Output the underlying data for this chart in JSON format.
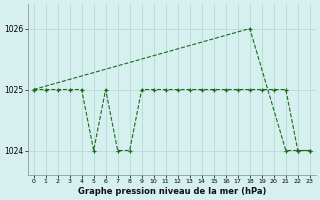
{
  "title": "Graphe pression niveau de la mer (hPa)",
  "bg_color": "#d6f0f0",
  "grid_color": "#b8d8d8",
  "line_color": "#1a6b1a",
  "marker_color": "#1a6b1a",
  "xlim": [
    -0.5,
    23.5
  ],
  "ylim": [
    1023.6,
    1026.4
  ],
  "yticks": [
    1024,
    1025,
    1026
  ],
  "xticks": [
    0,
    1,
    2,
    3,
    4,
    5,
    6,
    7,
    8,
    9,
    10,
    11,
    12,
    13,
    14,
    15,
    16,
    17,
    18,
    19,
    20,
    21,
    22,
    23
  ],
  "line1_x": [
    0,
    1,
    2,
    3,
    4,
    5,
    6,
    7,
    8,
    9,
    10,
    11,
    12,
    13,
    14,
    15,
    16,
    17,
    18,
    19,
    20,
    21,
    22,
    23
  ],
  "line1_y": [
    1025.0,
    1025.0,
    1025.0,
    1025.0,
    1025.0,
    1024.0,
    1025.0,
    1024.0,
    1024.0,
    1025.0,
    1025.0,
    1025.0,
    1025.0,
    1025.0,
    1025.0,
    1025.0,
    1025.0,
    1025.0,
    1025.0,
    1025.0,
    1025.0,
    1025.0,
    1024.0,
    1024.0
  ],
  "line2_x": [
    0,
    18,
    21,
    22,
    23
  ],
  "line2_y": [
    1025.0,
    1026.0,
    1024.0,
    1024.0,
    1024.0
  ]
}
